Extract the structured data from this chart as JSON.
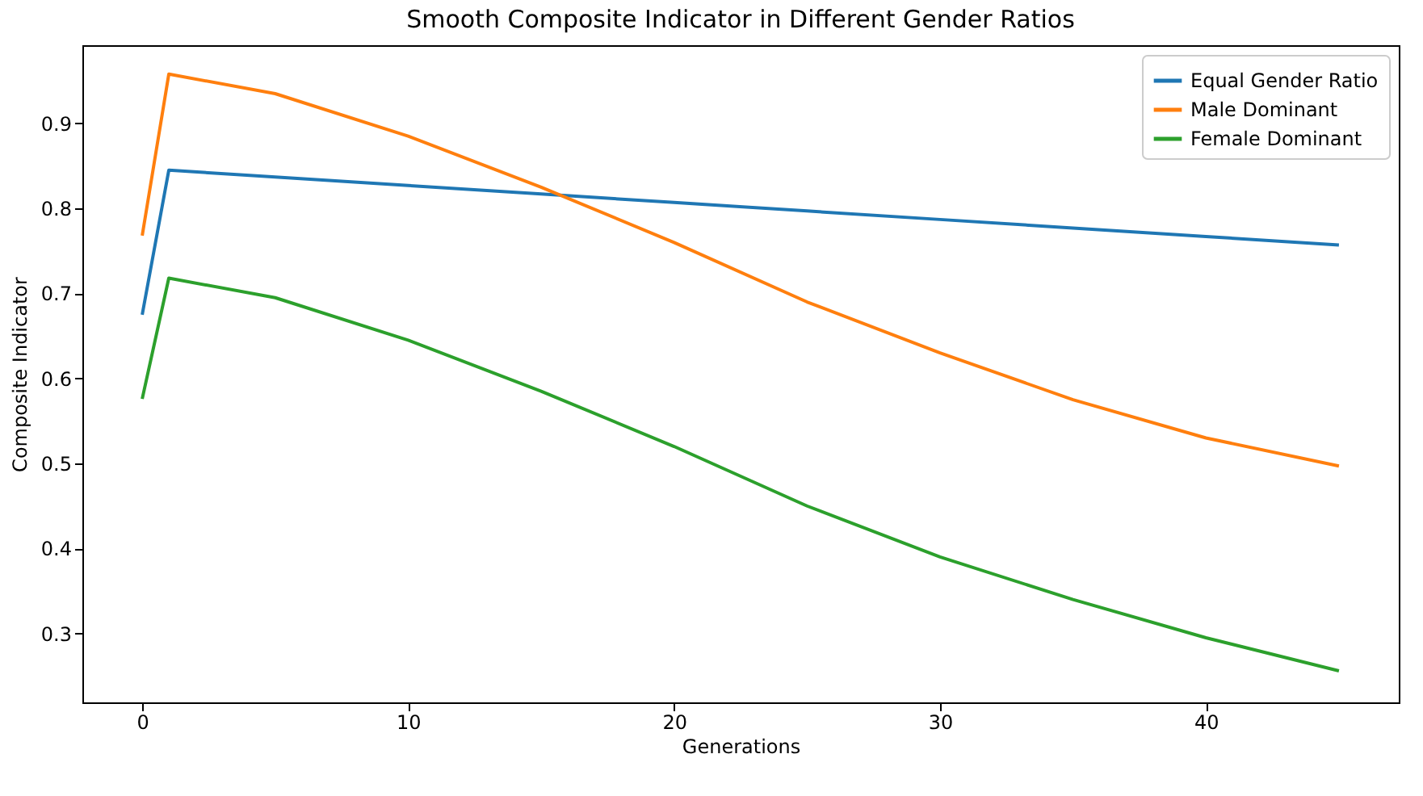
{
  "chart_data": {
    "type": "line",
    "title": "Smooth Composite Indicator in Different Gender Ratios",
    "xlabel": "Generations",
    "ylabel": "Composite Indicator",
    "x": [
      0,
      1,
      5,
      10,
      15,
      20,
      25,
      30,
      35,
      40,
      45
    ],
    "series": [
      {
        "name": "Equal Gender Ratio",
        "color": "#1f77b4",
        "values": [
          0.675,
          0.845,
          0.837,
          0.827,
          0.817,
          0.807,
          0.797,
          0.787,
          0.777,
          0.767,
          0.757
        ]
      },
      {
        "name": "Male Dominant",
        "color": "#ff7f0e",
        "values": [
          0.768,
          0.958,
          0.935,
          0.885,
          0.825,
          0.76,
          0.69,
          0.63,
          0.575,
          0.53,
          0.497
        ]
      },
      {
        "name": "Female Dominant",
        "color": "#2ca02c",
        "values": [
          0.576,
          0.718,
          0.695,
          0.645,
          0.585,
          0.52,
          0.45,
          0.39,
          0.34,
          0.295,
          0.256
        ]
      }
    ],
    "xlim": [
      -2.25,
      47.25
    ],
    "ylim": [
      0.219,
      0.992
    ],
    "xticks": [
      0,
      10,
      20,
      30,
      40
    ],
    "yticks": [
      0.3,
      0.4,
      0.5,
      0.6,
      0.7,
      0.8,
      0.9
    ],
    "legend": "top right",
    "grid": false
  }
}
